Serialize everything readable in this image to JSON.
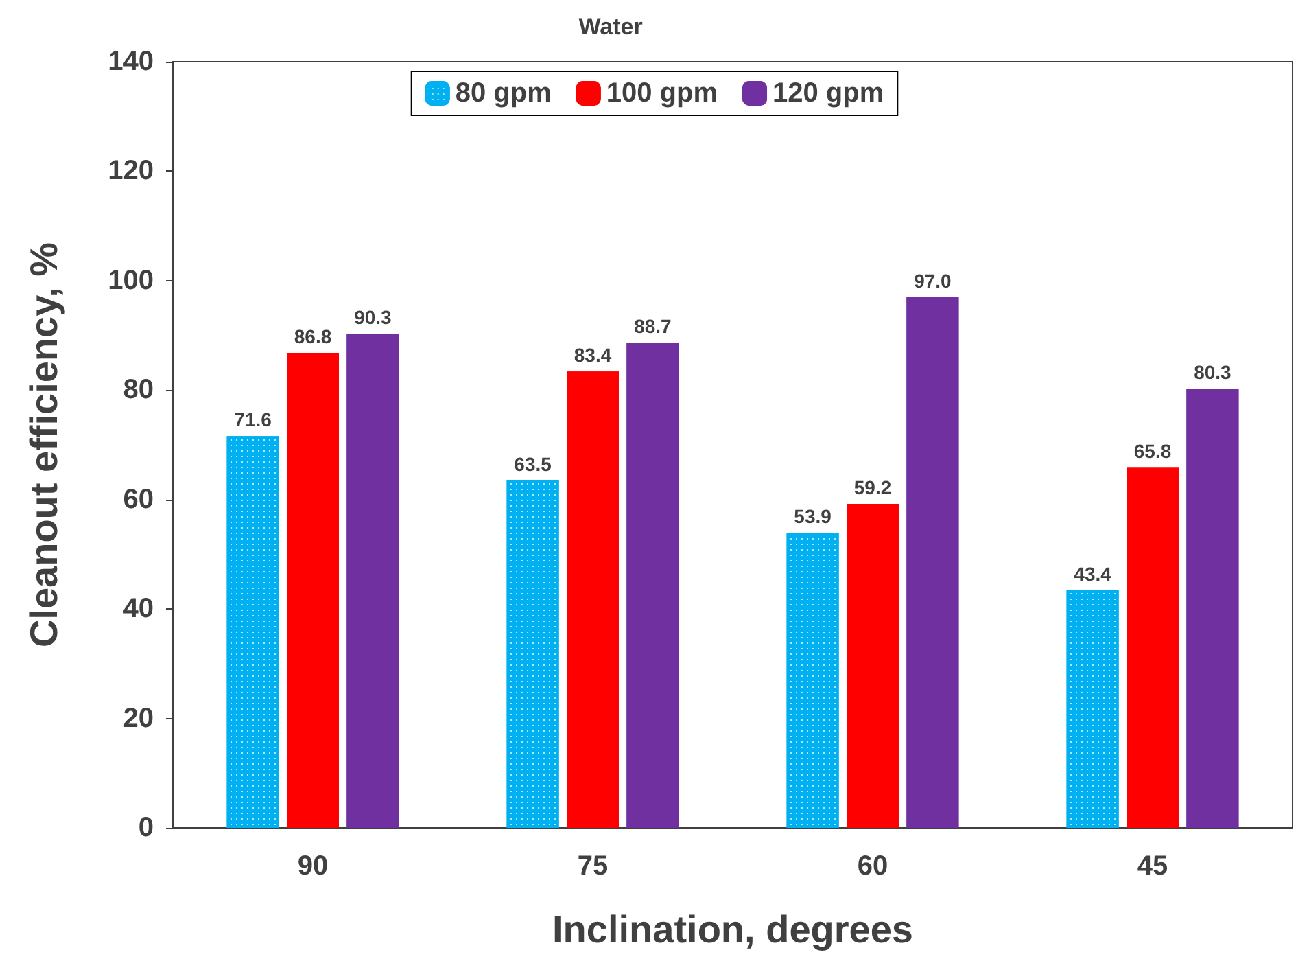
{
  "chart_data": {
    "type": "bar",
    "title": "Water",
    "xlabel": "Inclination, degrees",
    "ylabel": "Cleanout efficiency, %",
    "categories": [
      "90",
      "75",
      "60",
      "45"
    ],
    "series": [
      {
        "name": "80 gpm",
        "color": "#00b0f0",
        "values": [
          71.6,
          63.5,
          53.9,
          43.4
        ],
        "value_labels": [
          "71.6",
          "63.5",
          "53.9",
          "43.4"
        ]
      },
      {
        "name": "100 gpm",
        "color": "#ff0000",
        "values": [
          86.8,
          83.4,
          59.2,
          65.8
        ],
        "value_labels": [
          "86.8",
          "83.4",
          "59.2",
          "65.8"
        ]
      },
      {
        "name": "120 gpm",
        "color": "#7030a0",
        "values": [
          90.3,
          88.7,
          97.0,
          80.3
        ],
        "value_labels": [
          "90.3",
          "88.7",
          "97.0",
          "80.3"
        ]
      }
    ],
    "ylim": [
      0,
      140
    ],
    "yticks": [
      0,
      20,
      40,
      60,
      80,
      100,
      120,
      140
    ],
    "grid": false,
    "legend": "top"
  }
}
